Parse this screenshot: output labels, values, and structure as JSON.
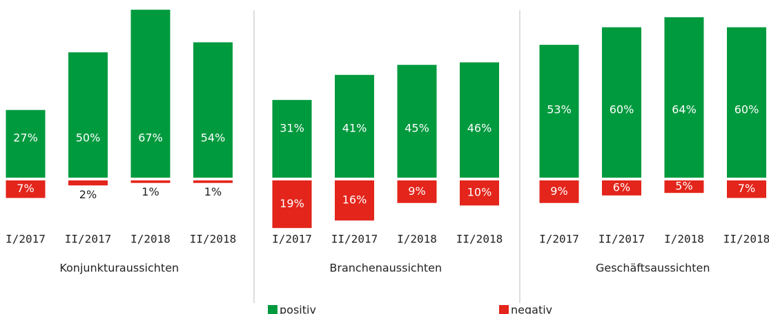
{
  "chart_data": {
    "type": "bar",
    "series": [
      {
        "name": "positiv",
        "color": "#009a3e"
      },
      {
        "name": "negativ",
        "color": "#e3251b"
      }
    ],
    "groups": [
      {
        "title": "Konjunkturaussichten",
        "categories": [
          "I/2017",
          "II/2017",
          "I/2018",
          "II/2018"
        ],
        "values": [
          [
            27,
            50,
            67,
            54
          ],
          [
            7,
            2,
            1,
            1
          ]
        ],
        "value_labels": [
          [
            "27%",
            "50%",
            "67%",
            "54%"
          ],
          [
            "7%",
            "2%",
            "1%",
            "1%"
          ]
        ]
      },
      {
        "title": "Branchenaussichten",
        "categories": [
          "I/2017",
          "II/2017",
          "I/2018",
          "II/2018"
        ],
        "values": [
          [
            31,
            41,
            45,
            46
          ],
          [
            19,
            16,
            9,
            10
          ]
        ],
        "value_labels": [
          [
            "31%",
            "41%",
            "45%",
            "46%"
          ],
          [
            "19%",
            "16%",
            "9%",
            "10%"
          ]
        ]
      },
      {
        "title": "Geschäftsaussichten",
        "categories": [
          "I/2017",
          "II/2017",
          "I/2018",
          "II/2018"
        ],
        "values": [
          [
            53,
            60,
            64,
            60
          ],
          [
            9,
            6,
            5,
            7
          ]
        ],
        "value_labels": [
          [
            "53%",
            "60%",
            "64%",
            "60%"
          ],
          [
            "9%",
            "6%",
            "5%",
            "7%"
          ]
        ]
      }
    ]
  }
}
